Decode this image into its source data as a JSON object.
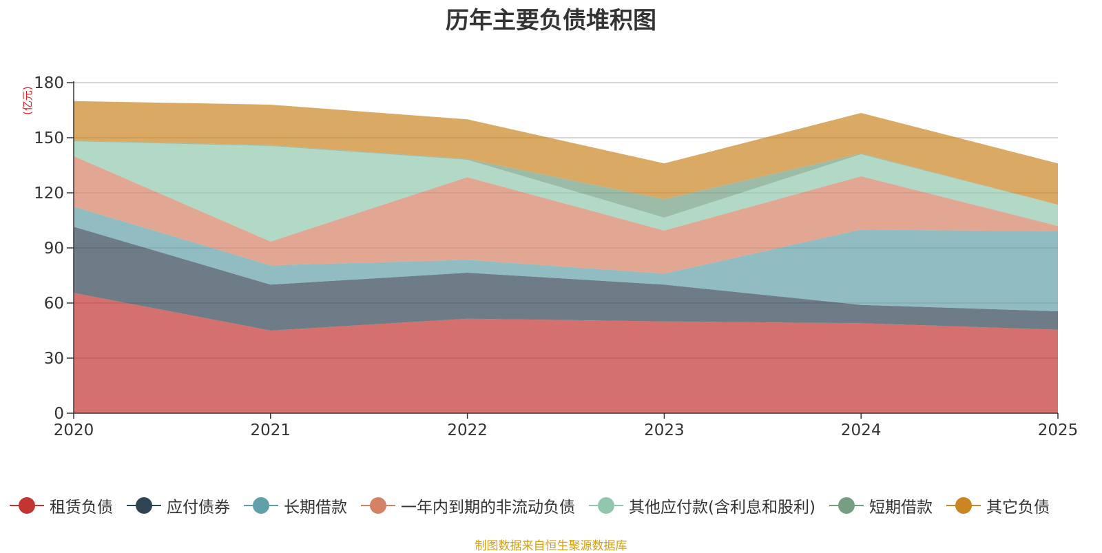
{
  "chart_data": {
    "type": "area",
    "stacked": true,
    "title": "历年主要负债堆积图",
    "ylabel": "(亿元)",
    "xlabel": "",
    "ylim": [
      0,
      180
    ],
    "yticks": [
      0,
      30,
      60,
      90,
      120,
      150,
      180
    ],
    "x": [
      "2020",
      "2021",
      "2022",
      "2023",
      "2024",
      "2025"
    ],
    "grid": true,
    "legend_position": "bottom",
    "series": [
      {
        "name": "租赁负债",
        "color": "#c23531",
        "values": [
          65.5,
          45.0,
          51.5,
          50.0,
          49.0,
          45.5
        ]
      },
      {
        "name": "应付债券",
        "color": "#2f4554",
        "values": [
          36.0,
          25.0,
          25.0,
          20.0,
          10.0,
          10.0
        ]
      },
      {
        "name": "长期借款",
        "color": "#61a0a8",
        "values": [
          11.0,
          10.5,
          7.0,
          6.0,
          41.0,
          43.5
        ]
      },
      {
        "name": "一年内到期的非流动负债",
        "color": "#d48265",
        "values": [
          27.5,
          13.0,
          45.0,
          23.5,
          29.0,
          3.0
        ]
      },
      {
        "name": "其他应付款(含利息和股利)",
        "color": "#91c7ae",
        "values": [
          8.0,
          52.0,
          9.5,
          7.0,
          12.0,
          11.5
        ]
      },
      {
        "name": "短期借款",
        "color": "#749f83",
        "values": [
          0.5,
          0.5,
          0.5,
          10.0,
          0.5,
          0.0
        ]
      },
      {
        "name": "其它负债",
        "color": "#ca8622",
        "values": [
          21.5,
          22.0,
          21.5,
          19.5,
          22.0,
          22.5
        ]
      }
    ]
  },
  "source_note": "制图数据来自恒生聚源数据库"
}
